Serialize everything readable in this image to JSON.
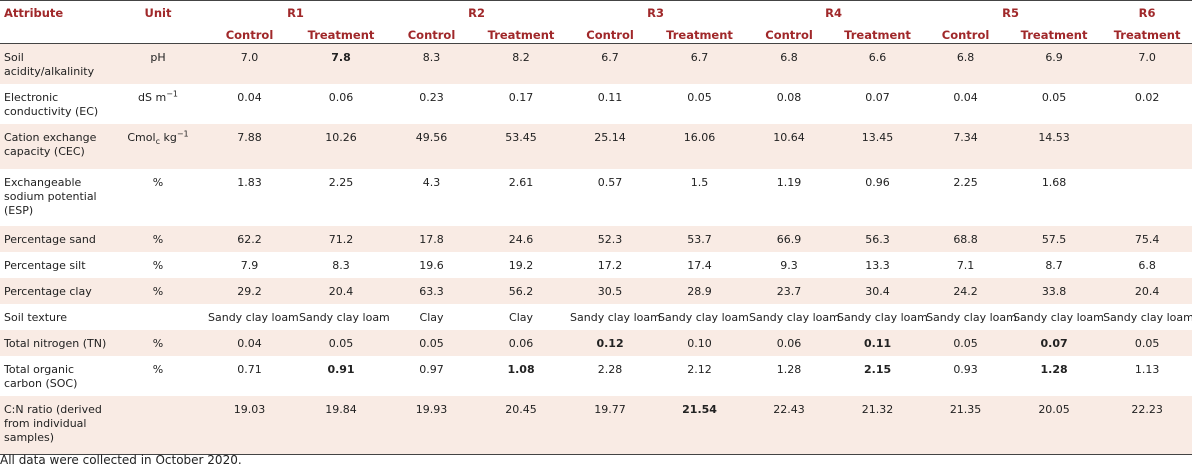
{
  "header": {
    "attribute": "Attribute",
    "unit": "Unit",
    "groups": [
      "R1",
      "R2",
      "R3",
      "R4",
      "R5",
      "R6"
    ],
    "control": "Control",
    "treatment": "Treatment"
  },
  "rows": [
    {
      "attr": "Soil acidity/alkalinity",
      "unit": "pH",
      "values": [
        "7.0",
        "7.8",
        "8.3",
        "8.2",
        "6.7",
        "6.7",
        "6.8",
        "6.6",
        "6.8",
        "6.9",
        "7.0"
      ]
    },
    {
      "attr": "Electronic conductivity (EC)",
      "unit": "dS m",
      "unit_sup": "−1",
      "values": [
        "0.04",
        "0.06",
        "0.23",
        "0.17",
        "0.11",
        "0.05",
        "0.08",
        "0.07",
        "0.04",
        "0.05",
        "0.02"
      ]
    },
    {
      "attr": "Cation exchange capacity (CEC)",
      "unit": "Cmol",
      "unit_sub": "c",
      "unit_tail": " kg",
      "unit_sup": "−1",
      "values": [
        "7.88",
        "10.26",
        "49.56",
        "53.45",
        "25.14",
        "16.06",
        "10.64",
        "13.45",
        "7.34",
        "14.53",
        ""
      ]
    },
    {
      "attr": "Exchangeable sodium potential (ESP)",
      "unit": "%",
      "values": [
        "1.83",
        "2.25",
        "4.3",
        "2.61",
        "0.57",
        "1.5",
        "1.19",
        "0.96",
        "2.25",
        "1.68",
        ""
      ]
    },
    {
      "attr": "Percentage sand",
      "unit": "%",
      "values": [
        "62.2",
        "71.2",
        "17.8",
        "24.6",
        "52.3",
        "53.7",
        "66.9",
        "56.3",
        "68.8",
        "57.5",
        "75.4"
      ]
    },
    {
      "attr": "Percentage silt",
      "unit": "%",
      "values": [
        "7.9",
        "8.3",
        "19.6",
        "19.2",
        "17.2",
        "17.4",
        "9.3",
        "13.3",
        "7.1",
        "8.7",
        "6.8"
      ]
    },
    {
      "attr": "Percentage clay",
      "unit": "%",
      "values": [
        "29.2",
        "20.4",
        "63.3",
        "56.2",
        "30.5",
        "28.9",
        "23.7",
        "30.4",
        "24.2",
        "33.8",
        "20.4"
      ]
    },
    {
      "attr": "Soil texture",
      "unit": "",
      "values": [
        "Sandy clay loam",
        "Sandy clay loam",
        "Clay",
        "Clay",
        "Sandy clay loam",
        "Sandy clay loam",
        "Sandy clay loam",
        "Sandy clay loam",
        "Sandy clay loam",
        "Sandy clay loam",
        "Sandy clay loam"
      ]
    },
    {
      "attr": "Total nitrogen (TN)",
      "unit": "%",
      "values": [
        "0.04",
        "0.05",
        "0.05",
        "0.06",
        "0.12",
        "0.10",
        "0.06",
        "0.11",
        "0.05",
        "0.07",
        "0.05"
      ]
    },
    {
      "attr": "Total organic carbon (SOC)",
      "unit": "%",
      "values": [
        "0.71",
        "0.91",
        "0.97",
        "1.08",
        "2.28",
        "2.12",
        "1.28",
        "2.15",
        "0.93",
        "1.28",
        "1.13"
      ]
    },
    {
      "attr": "C:N ratio (derived from individual samples)",
      "unit": "",
      "values": [
        "19.03",
        "19.84",
        "19.93",
        "20.45",
        "19.77",
        "21.54",
        "22.43",
        "21.32",
        "21.35",
        "20.05",
        "22.23"
      ]
    }
  ],
  "note": "All data were collected in October 2020."
}
